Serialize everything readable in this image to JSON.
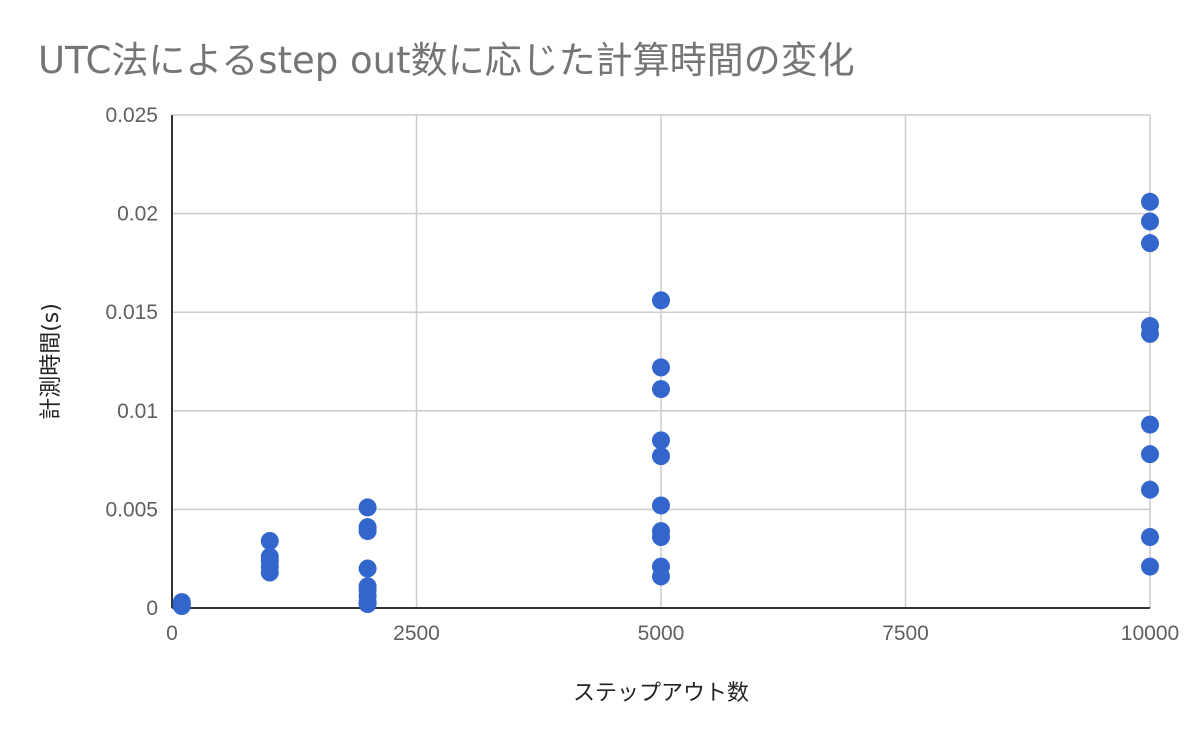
{
  "chart_data": {
    "type": "scatter",
    "title": "UTC法によるstep out数に応じた計算時間の変化",
    "xlabel": "ステップアウト数",
    "ylabel": "計測時間(s)",
    "xlim": [
      0,
      10000
    ],
    "ylim": [
      0,
      0.025
    ],
    "x_ticks": [
      0,
      2500,
      5000,
      7500,
      10000
    ],
    "y_ticks": [
      0,
      0.005,
      0.01,
      0.015,
      0.02,
      0.025
    ],
    "x_tick_labels": [
      "0",
      "2500",
      "5000",
      "7500",
      "10000"
    ],
    "y_tick_labels": [
      "0",
      "0.005",
      "0.01",
      "0.015",
      "0.02",
      "0.025"
    ],
    "grid": true,
    "legend": "none",
    "colors": {
      "point": "#3366cc",
      "grid": "#cccccc",
      "axis": "#333333",
      "title": "#757575"
    },
    "series": [
      {
        "name": "計測時間(s)",
        "points": [
          {
            "x": 100,
            "y": 0.0003
          },
          {
            "x": 100,
            "y": 0.0002
          },
          {
            "x": 100,
            "y": 0.0001
          },
          {
            "x": 1000,
            "y": 0.0034
          },
          {
            "x": 1000,
            "y": 0.0026
          },
          {
            "x": 1000,
            "y": 0.0024
          },
          {
            "x": 1000,
            "y": 0.0021
          },
          {
            "x": 1000,
            "y": 0.0018
          },
          {
            "x": 2000,
            "y": 0.0051
          },
          {
            "x": 2000,
            "y": 0.0041
          },
          {
            "x": 2000,
            "y": 0.0039
          },
          {
            "x": 2000,
            "y": 0.002
          },
          {
            "x": 2000,
            "y": 0.0011
          },
          {
            "x": 2000,
            "y": 0.0009
          },
          {
            "x": 2000,
            "y": 0.0006
          },
          {
            "x": 2000,
            "y": 0.0003
          },
          {
            "x": 2000,
            "y": 0.0002
          },
          {
            "x": 5000,
            "y": 0.0156
          },
          {
            "x": 5000,
            "y": 0.0122
          },
          {
            "x": 5000,
            "y": 0.0111
          },
          {
            "x": 5000,
            "y": 0.0085
          },
          {
            "x": 5000,
            "y": 0.0077
          },
          {
            "x": 5000,
            "y": 0.0052
          },
          {
            "x": 5000,
            "y": 0.0039
          },
          {
            "x": 5000,
            "y": 0.0036
          },
          {
            "x": 5000,
            "y": 0.0021
          },
          {
            "x": 5000,
            "y": 0.0016
          },
          {
            "x": 10000,
            "y": 0.0206
          },
          {
            "x": 10000,
            "y": 0.0196
          },
          {
            "x": 10000,
            "y": 0.0185
          },
          {
            "x": 10000,
            "y": 0.0143
          },
          {
            "x": 10000,
            "y": 0.0139
          },
          {
            "x": 10000,
            "y": 0.0093
          },
          {
            "x": 10000,
            "y": 0.0078
          },
          {
            "x": 10000,
            "y": 0.006
          },
          {
            "x": 10000,
            "y": 0.0036
          },
          {
            "x": 10000,
            "y": 0.0021
          }
        ]
      }
    ]
  }
}
